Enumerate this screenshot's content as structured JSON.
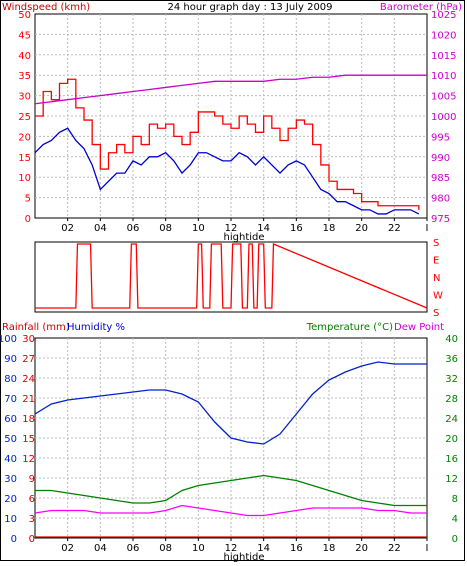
{
  "header": {
    "left_label": "Windspeed (kmh)",
    "title": "24 hour graph day : 13 July 2009",
    "right_label": "Barometer (hPa)"
  },
  "bottom_header": {
    "rainfall_label": "Rainfall (mm)",
    "humidity_label": "Humidity %",
    "temperature_label": "Temperature (°C)",
    "dewpoint_label": "Dew Point"
  },
  "x_axis": {
    "ticks": [
      "02",
      "04",
      "06",
      "08",
      "10",
      "12",
      "14",
      "16",
      "18",
      "20",
      "22",
      "I"
    ],
    "marker_label": "hightide"
  },
  "colors": {
    "windspeed": "#ff0000",
    "wind_average": "#0000cc",
    "barometer": "#cc00cc",
    "humidity": "#0022cc",
    "temperature": "#008000",
    "dewpoint": "#ff00ff",
    "rainfall": "#dd0000",
    "grid": "#bbbbbb"
  },
  "chart_data": [
    {
      "type": "line",
      "title": "24 hour graph day : 13 July 2009",
      "x_unit": "hour",
      "xlim": [
        0,
        24
      ],
      "left_axis": {
        "label": "Windspeed (kmh)",
        "ylim": [
          0,
          50
        ],
        "ticks": [
          "0",
          "5",
          "10",
          "15",
          "20",
          "25",
          "30",
          "35",
          "40",
          "45",
          "50"
        ]
      },
      "right_axis": {
        "label": "Barometer (hPa)",
        "ylim": [
          975,
          1025
        ],
        "ticks": [
          "975",
          "980",
          "985",
          "990",
          "995",
          "1000",
          "1005",
          "1010",
          "1015",
          "1020",
          "1025"
        ]
      },
      "grid": true,
      "series": [
        {
          "axis": "left",
          "x": [
            0,
            0.5,
            1,
            1.5,
            2,
            2.5,
            3,
            3.5,
            4,
            4.5,
            5,
            5.5,
            6,
            6.5,
            7,
            7.5,
            8,
            8.5,
            9,
            9.5,
            10,
            10.5,
            11,
            11.5,
            12,
            12.5,
            13,
            13.5,
            14,
            14.5,
            15,
            15.5,
            16,
            16.5,
            17,
            17.5,
            18,
            18.5,
            19,
            19.5,
            20,
            20.5,
            21,
            21.5,
            22,
            22.5,
            23,
            23.5
          ],
          "values": [
            25,
            31,
            29,
            33,
            34,
            27,
            24,
            18,
            12,
            16,
            18,
            16,
            20,
            18,
            23,
            22,
            23,
            20,
            18,
            21,
            26,
            26,
            25,
            23,
            22,
            25,
            23,
            21,
            25,
            22,
            19,
            22,
            24,
            23,
            18,
            13,
            9,
            7,
            7,
            6,
            4,
            4,
            3,
            3,
            3,
            3,
            3,
            2
          ]
        },
        {
          "axis": "left",
          "x": [
            0,
            0.5,
            1,
            1.5,
            2,
            2.5,
            3,
            3.5,
            4,
            4.5,
            5,
            5.5,
            6,
            6.5,
            7,
            7.5,
            8,
            8.5,
            9,
            9.5,
            10,
            10.5,
            11,
            11.5,
            12,
            12.5,
            13,
            13.5,
            14,
            14.5,
            15,
            15.5,
            16,
            16.5,
            17,
            17.5,
            18,
            18.5,
            19,
            19.5,
            20,
            20.5,
            21,
            21.5,
            22,
            22.5,
            23,
            23.5
          ],
          "values": [
            16,
            18,
            19,
            21,
            22,
            19,
            17,
            13,
            7,
            9,
            11,
            11,
            14,
            13,
            15,
            15,
            16,
            14,
            11,
            13,
            16,
            16,
            15,
            14,
            14,
            16,
            15,
            13,
            15,
            13,
            11,
            13,
            14,
            13,
            10,
            7,
            6,
            4,
            4,
            3,
            2,
            2,
            1,
            1,
            2,
            2,
            2,
            1
          ]
        },
        {
          "axis": "right",
          "x": [
            0,
            1,
            2,
            3,
            4,
            5,
            6,
            7,
            8,
            9,
            10,
            11,
            12,
            13,
            14,
            15,
            16,
            17,
            18,
            19,
            20,
            21,
            22,
            23,
            24
          ],
          "values": [
            1003,
            1003.5,
            1004,
            1004.5,
            1005,
            1005.5,
            1006,
            1006.5,
            1007,
            1007.5,
            1008,
            1008.5,
            1008.5,
            1008.5,
            1008.5,
            1009,
            1009,
            1009.5,
            1009.5,
            1010,
            1010,
            1010,
            1010,
            1010,
            1010
          ]
        }
      ]
    },
    {
      "type": "line",
      "xlim": [
        0,
        24
      ],
      "right_axis_ticks": [
        "S",
        "E",
        "N",
        "W",
        "S"
      ],
      "series": [
        {
          "values_note": "",
          "x": [
            0,
            2.5,
            2.6,
            3.4,
            3.5,
            5.8,
            5.9,
            6.2,
            6.3,
            9.9,
            10.0,
            10.2,
            10.3,
            10.7,
            10.8,
            11.4,
            11.5,
            12.0,
            12.1,
            12.6,
            12.7,
            13.0,
            13.1,
            13.3,
            13.4,
            13.6,
            13.7,
            14.0,
            14.1,
            14.5,
            14.6,
            24
          ],
          "values": [
            0,
            0,
            360,
            360,
            0,
            0,
            360,
            360,
            0,
            0,
            360,
            360,
            0,
            0,
            360,
            360,
            0,
            0,
            360,
            360,
            0,
            0,
            360,
            360,
            0,
            0,
            360,
            360,
            0,
            0,
            360,
            0
          ]
        }
      ]
    },
    {
      "type": "line",
      "xlim": [
        0,
        24
      ],
      "rainfall_axis": {
        "label": "Rainfall (mm)",
        "ylim": [
          0,
          30
        ],
        "ticks": [
          "0",
          "3",
          "6",
          "9",
          "12",
          "15",
          "18",
          "21",
          "24",
          "27",
          "30"
        ]
      },
      "humidity_axis": {
        "label": "Humidity %",
        "ylim": [
          0,
          100
        ],
        "ticks": [
          "0",
          "10",
          "20",
          "30",
          "40",
          "50",
          "60",
          "70",
          "80",
          "90",
          "100"
        ]
      },
      "temperature_axis": {
        "label": "Temperature (°C)",
        "ylim": [
          0,
          40
        ],
        "ticks": [
          "0",
          "4",
          "8",
          "12",
          "16",
          "20",
          "24",
          "28",
          "32",
          "36",
          "40"
        ]
      },
      "grid": true,
      "series": [
        {
          "name": "Humidity %",
          "axis": "humidity",
          "x": [
            0,
            1,
            2,
            3,
            4,
            5,
            6,
            7,
            8,
            9,
            10,
            11,
            12,
            13,
            14,
            15,
            16,
            17,
            18,
            19,
            20,
            21,
            22,
            23,
            24
          ],
          "values": [
            62,
            67,
            69,
            70,
            71,
            72,
            73,
            74,
            74,
            72,
            68,
            58,
            50,
            48,
            47,
            52,
            62,
            72,
            79,
            83,
            86,
            88,
            87,
            87,
            87
          ]
        },
        {
          "name": "Temperature (°C)",
          "axis": "temperature",
          "x": [
            0,
            1,
            2,
            3,
            4,
            5,
            6,
            7,
            8,
            9,
            10,
            11,
            12,
            13,
            14,
            15,
            16,
            17,
            18,
            19,
            20,
            21,
            22,
            23,
            24
          ],
          "values": [
            9.5,
            9.5,
            9,
            8.5,
            8,
            7.5,
            7,
            7,
            7.5,
            9.5,
            10.5,
            11,
            11.5,
            12,
            12.5,
            12,
            11.5,
            10.5,
            9.5,
            8.5,
            7.5,
            7,
            6.5,
            6.5,
            6.5
          ]
        },
        {
          "name": "Dew Point",
          "axis": "temperature",
          "x": [
            0,
            1,
            2,
            3,
            4,
            5,
            6,
            7,
            8,
            9,
            10,
            11,
            12,
            13,
            14,
            15,
            16,
            17,
            18,
            19,
            20,
            21,
            22,
            23,
            24
          ],
          "values": [
            5,
            5.5,
            5.5,
            5.5,
            5,
            5,
            5,
            5,
            5.5,
            6.5,
            6,
            5.5,
            5,
            4.5,
            4.5,
            5,
            5.5,
            6,
            6,
            6,
            6,
            5.5,
            5.5,
            5,
            5
          ]
        },
        {
          "name": "Rainfall (mm)",
          "axis": "rainfall",
          "x": [
            0,
            24
          ],
          "values": [
            0,
            0
          ]
        }
      ]
    }
  ]
}
